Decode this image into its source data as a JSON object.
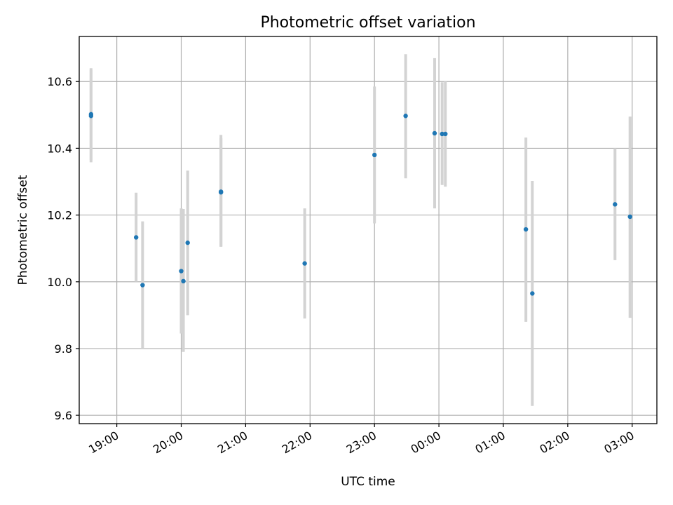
{
  "chart_data": {
    "type": "scatter",
    "title": "Photometric offset variation",
    "xlabel": "UTC time",
    "ylabel": "Photometric offset",
    "xlim": [
      "18:25",
      "03:23"
    ],
    "ylim": [
      9.575,
      10.735
    ],
    "x_ticks": [
      "19:00",
      "20:00",
      "21:00",
      "22:00",
      "23:00",
      "00:00",
      "01:00",
      "02:00",
      "03:00"
    ],
    "y_ticks": [
      "9.6",
      "9.8",
      "10.0",
      "10.2",
      "10.4",
      "10.6"
    ],
    "grid": true,
    "colors": {
      "points": "#1f77b4",
      "errorbars": "#d3d3d3"
    },
    "points": [
      {
        "x": "18:36",
        "y": 10.497,
        "low": 10.358,
        "high": 10.64
      },
      {
        "x": "18:36",
        "y": 10.502,
        "low": 10.365,
        "high": 10.635
      },
      {
        "x": "19:18",
        "y": 10.133,
        "low": 10.0,
        "high": 10.267
      },
      {
        "x": "19:24",
        "y": 9.99,
        "low": 9.8,
        "high": 10.181
      },
      {
        "x": "20:00",
        "y": 10.032,
        "low": 9.845,
        "high": 10.22
      },
      {
        "x": "20:02",
        "y": 10.002,
        "low": 9.79,
        "high": 10.218
      },
      {
        "x": "20:06",
        "y": 10.117,
        "low": 9.9,
        "high": 10.333
      },
      {
        "x": "20:37",
        "y": 10.27,
        "low": 10.105,
        "high": 10.44
      },
      {
        "x": "20:37",
        "y": 10.268,
        "low": 10.105,
        "high": 10.43
      },
      {
        "x": "21:55",
        "y": 10.055,
        "low": 9.89,
        "high": 10.22
      },
      {
        "x": "23:00",
        "y": 10.38,
        "low": 10.175,
        "high": 10.585
      },
      {
        "x": "23:29",
        "y": 10.497,
        "low": 10.31,
        "high": 10.682
      },
      {
        "x": "23:56",
        "y": 10.445,
        "low": 10.22,
        "high": 10.67
      },
      {
        "x": "00:03",
        "y": 10.443,
        "low": 10.29,
        "high": 10.598
      },
      {
        "x": "00:06",
        "y": 10.443,
        "low": 10.285,
        "high": 10.6
      },
      {
        "x": "01:21",
        "y": 10.157,
        "low": 9.88,
        "high": 10.432
      },
      {
        "x": "01:27",
        "y": 9.965,
        "low": 9.628,
        "high": 10.302
      },
      {
        "x": "02:44",
        "y": 10.232,
        "low": 10.065,
        "high": 10.4
      },
      {
        "x": "02:58",
        "y": 10.195,
        "low": 9.892,
        "high": 10.495
      }
    ]
  }
}
